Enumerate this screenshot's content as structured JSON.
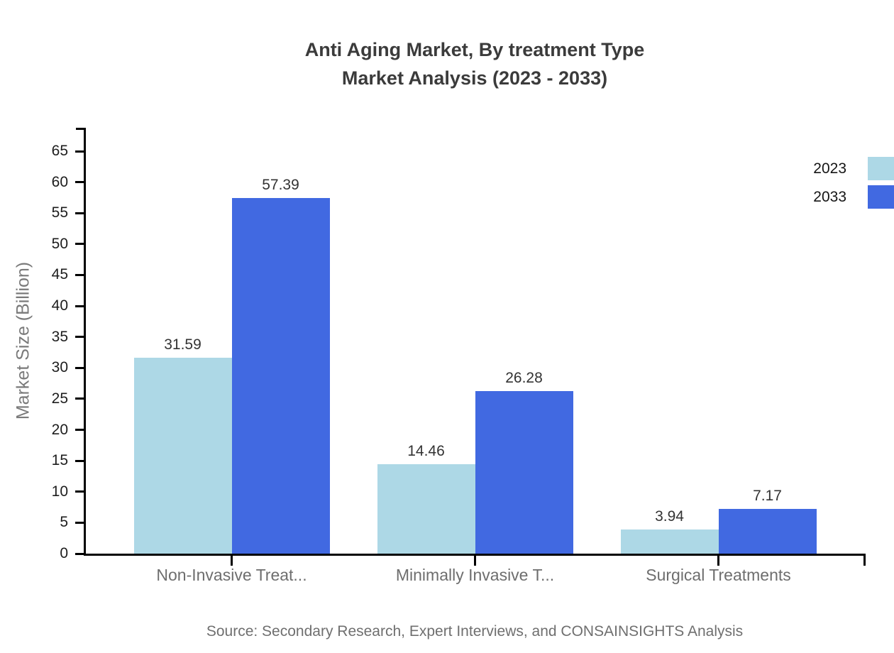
{
  "title": {
    "lines": [
      "Anti Aging Market, By treatment Type",
      "Market Analysis (2023 - 2033)"
    ]
  },
  "chart_data": {
    "type": "bar",
    "categories": [
      "Non-Invasive Treat...",
      "Minimally Invasive T...",
      "Surgical Treatments"
    ],
    "series": [
      {
        "name": "2023",
        "color": "#ADD8E6",
        "values": [
          31.59,
          14.46,
          3.94
        ]
      },
      {
        "name": "2033",
        "color": "#4169E1",
        "values": [
          57.39,
          26.28,
          7.17
        ]
      }
    ],
    "value_labels": [
      "31.59",
      "57.39",
      "14.46",
      "26.28",
      "3.94",
      "7.17"
    ],
    "xlabel": "",
    "ylabel": "Market Size (Billion)",
    "ylim": [
      0,
      65
    ],
    "ytick_step": 5,
    "yticks": [
      0,
      5,
      10,
      15,
      20,
      25,
      30,
      35,
      40,
      45,
      50,
      55,
      60,
      65
    ],
    "grid": false,
    "legend_position": "top-right"
  },
  "source": "Source: Secondary Research, Expert Interviews, and CONSAINSIGHTS Analysis"
}
